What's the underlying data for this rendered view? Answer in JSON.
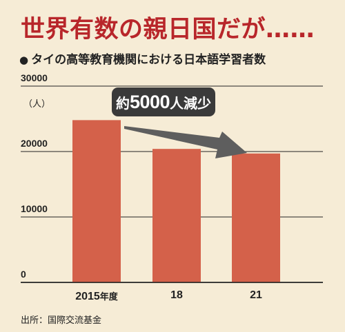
{
  "title": "世界有数の親日国だが……",
  "subtitle_bullet": "●",
  "subtitle": "タイの高等教育機関における日本語学習者数",
  "unit": "（人）",
  "callout": {
    "prefix": "約",
    "number": "5000",
    "suffix": "人減少"
  },
  "source": "出所：国際交流基金",
  "chart_data": {
    "type": "bar",
    "categories": [
      "2015年度",
      "18",
      "21"
    ],
    "category_parts": [
      {
        "main": "2015",
        "suffix": "年度"
      },
      {
        "main": "18",
        "suffix": ""
      },
      {
        "main": "21",
        "suffix": ""
      }
    ],
    "values": [
      24800,
      20400,
      19700
    ],
    "ylim": [
      0,
      30000
    ],
    "yticks": [
      0,
      10000,
      20000,
      30000
    ],
    "ytick_labels": [
      "0",
      "10000",
      "20000",
      "30000"
    ],
    "grid": true,
    "bar_color": "#d4614a",
    "arrow_color": "#5e5e5e",
    "grid_color": "#222222"
  }
}
